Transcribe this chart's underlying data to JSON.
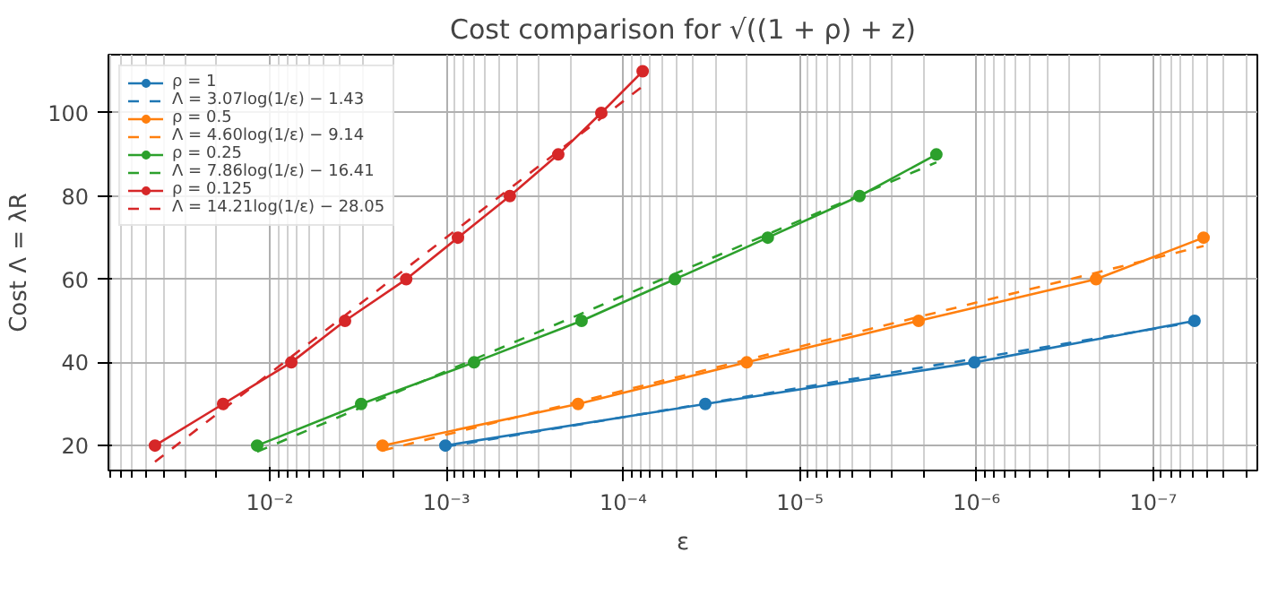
{
  "chart_data": {
    "type": "line",
    "title": "Cost comparison for √((1 + ρ) + z)",
    "xlabel": "ε",
    "ylabel": "Cost Λ = λR",
    "log": "x",
    "grid": true,
    "legend": "top left",
    "xlim": [
      0.0818,
      2.58e-08
    ],
    "xticks": [
      {
        "value": 0.01,
        "label": "10⁻²"
      },
      {
        "value": 0.001,
        "label": "10⁻³"
      },
      {
        "value": 0.0001,
        "label": "10⁻⁴"
      },
      {
        "value": 1e-05,
        "label": "10⁻⁵"
      },
      {
        "value": 1e-06,
        "label": "10⁻⁶"
      },
      {
        "value": 1e-07,
        "label": "10⁻⁷"
      }
    ],
    "ylim": [
      14,
      114
    ],
    "yticks": [
      20,
      40,
      60,
      80,
      100
    ],
    "series": [
      {
        "name": "ρ = 1",
        "color": "#1f77b4",
        "marker": "circle",
        "line_style": "solid",
        "x": [
          0.001014,
          3.43e-05,
          1.03e-06,
          5.85e-08
        ],
        "values": [
          20,
          30,
          40,
          50
        ]
      },
      {
        "name": "Λ = 3.07log(1/ε) − 1.43",
        "color": "#1f77b4",
        "marker": "none",
        "line_style": "dashed",
        "x": [
          0.001014,
          5.85e-08
        ],
        "values": [
          19.7,
          49.7
        ]
      },
      {
        "name": "ρ = 0.5",
        "color": "#ff7f0e",
        "marker": "circle",
        "line_style": "solid",
        "x": [
          0.0023,
          0.00018,
          2e-05,
          2.13e-06,
          2.11e-07,
          5.2e-08
        ],
        "values": [
          20,
          30,
          40,
          50,
          60,
          70
        ]
      },
      {
        "name": "Λ = 4.60log(1/ε) − 9.14",
        "color": "#ff7f0e",
        "marker": "none",
        "line_style": "dashed",
        "x": [
          0.0023,
          5.2e-08
        ],
        "values": [
          18.8,
          68
        ]
      },
      {
        "name": "ρ = 0.25",
        "color": "#2ca02c",
        "marker": "circle",
        "line_style": "solid",
        "x": [
          0.01178,
          0.00304,
          0.000698,
          0.000172,
          5.1e-05,
          1.52e-05,
          4.6e-06,
          1.69e-06
        ],
        "values": [
          20,
          30,
          40,
          50,
          60,
          70,
          80,
          90
        ]
      },
      {
        "name": "Λ = 7.86log(1/ε) − 16.41",
        "color": "#2ca02c",
        "marker": "none",
        "line_style": "dashed",
        "x": [
          0.01178,
          1.69e-06
        ],
        "values": [
          18.5,
          88.1
        ]
      },
      {
        "name": "ρ = 0.125",
        "color": "#d62728",
        "marker": "circle",
        "line_style": "solid",
        "x": [
          0.0446,
          0.01836,
          0.00755,
          0.00375,
          0.00169,
          0.000861,
          0.000438,
          0.000233,
          0.000133,
          7.76e-05
        ],
        "values": [
          20,
          30,
          40,
          50,
          60,
          70,
          80,
          90,
          100,
          110
        ]
      },
      {
        "name": "Λ = 14.21log(1/ε) − 28.05",
        "color": "#d62728",
        "marker": "none",
        "line_style": "dashed",
        "x": [
          0.0446,
          7.76e-05
        ],
        "values": [
          16.1,
          106.4
        ]
      }
    ]
  }
}
